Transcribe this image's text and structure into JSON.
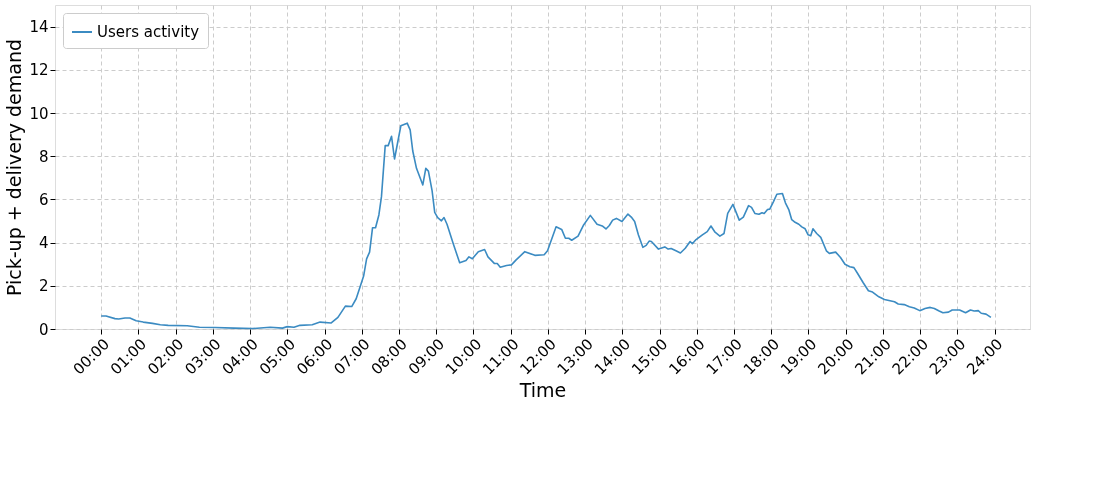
{
  "chart_data": {
    "type": "line",
    "xlabel": "Time",
    "ylabel": "Pick-up + delivery demand",
    "x": [
      0.0,
      0.13,
      0.37,
      0.47,
      0.64,
      0.77,
      0.94,
      1.13,
      1.38,
      1.59,
      1.8,
      2.31,
      2.64,
      3.06,
      3.57,
      4.07,
      4.54,
      4.87,
      5.0,
      5.18,
      5.34,
      5.67,
      5.88,
      6.18,
      6.36,
      6.56,
      6.73,
      6.85,
      6.98,
      7.05,
      7.13,
      7.21,
      7.29,
      7.37,
      7.46,
      7.53,
      7.63,
      7.71,
      7.8,
      7.88,
      8.05,
      8.22,
      8.3,
      8.37,
      8.47,
      8.64,
      8.72,
      8.79,
      8.89,
      8.96,
      9.04,
      9.14,
      9.21,
      9.29,
      9.46,
      9.63,
      9.8,
      9.88,
      9.97,
      10.13,
      10.3,
      10.39,
      10.56,
      10.64,
      10.72,
      10.89,
      11.02,
      11.14,
      11.38,
      11.65,
      11.9,
      11.99,
      12.22,
      12.37,
      12.47,
      12.56,
      12.64,
      12.81,
      12.95,
      13.14,
      13.32,
      13.46,
      13.56,
      13.65,
      13.74,
      13.84,
      13.99,
      14.15,
      14.24,
      14.33,
      14.43,
      14.55,
      14.64,
      14.72,
      14.78,
      14.97,
      15.14,
      15.23,
      15.31,
      15.44,
      15.56,
      15.69,
      15.82,
      15.88,
      15.98,
      16.15,
      16.28,
      16.38,
      16.49,
      16.62,
      16.73,
      16.83,
      16.97,
      17.14,
      17.25,
      17.39,
      17.47,
      17.56,
      17.67,
      17.75,
      17.81,
      17.9,
      17.96,
      18.06,
      18.15,
      18.3,
      18.38,
      18.47,
      18.55,
      18.64,
      18.74,
      18.82,
      18.91,
      18.99,
      19.06,
      19.12,
      19.22,
      19.33,
      19.48,
      19.56,
      19.73,
      19.86,
      19.98,
      20.11,
      20.22,
      20.32,
      20.47,
      20.61,
      20.72,
      20.89,
      21.04,
      21.16,
      21.31,
      21.41,
      21.57,
      21.71,
      21.84,
      21.99,
      22.13,
      22.27,
      22.38,
      22.51,
      22.61,
      22.76,
      22.86,
      23.06,
      23.22,
      23.35,
      23.45,
      23.56,
      23.64,
      23.77,
      23.9
    ],
    "series": [
      {
        "name": "Users activity",
        "color": "#3b8bc2",
        "values": [
          0.6,
          0.6,
          0.48,
          0.46,
          0.51,
          0.51,
          0.38,
          0.32,
          0.26,
          0.2,
          0.17,
          0.15,
          0.08,
          0.07,
          0.04,
          0.02,
          0.08,
          0.04,
          0.11,
          0.08,
          0.17,
          0.2,
          0.32,
          0.28,
          0.54,
          1.06,
          1.04,
          1.4,
          2.08,
          2.45,
          3.25,
          3.56,
          4.69,
          4.69,
          5.28,
          6.14,
          8.49,
          8.49,
          8.92,
          7.87,
          9.41,
          9.53,
          9.22,
          8.24,
          7.44,
          6.67,
          7.44,
          7.31,
          6.39,
          5.4,
          5.16,
          5.01,
          5.16,
          4.85,
          3.93,
          3.07,
          3.17,
          3.34,
          3.25,
          3.58,
          3.68,
          3.34,
          3.04,
          3.03,
          2.86,
          2.94,
          2.97,
          3.19,
          3.58,
          3.41,
          3.44,
          3.62,
          4.73,
          4.61,
          4.2,
          4.2,
          4.11,
          4.3,
          4.79,
          5.26,
          4.85,
          4.77,
          4.63,
          4.79,
          5.04,
          5.12,
          4.98,
          5.32,
          5.18,
          4.98,
          4.36,
          3.78,
          3.87,
          4.07,
          4.05,
          3.7,
          3.8,
          3.7,
          3.73,
          3.62,
          3.52,
          3.74,
          4.05,
          3.95,
          4.14,
          4.36,
          4.51,
          4.77,
          4.48,
          4.3,
          4.42,
          5.35,
          5.77,
          5.04,
          5.18,
          5.71,
          5.63,
          5.35,
          5.31,
          5.38,
          5.35,
          5.53,
          5.55,
          5.9,
          6.24,
          6.27,
          5.84,
          5.53,
          5.06,
          4.94,
          4.85,
          4.73,
          4.64,
          4.36,
          4.32,
          4.64,
          4.42,
          4.24,
          3.62,
          3.5,
          3.56,
          3.31,
          3.0,
          2.88,
          2.84,
          2.57,
          2.14,
          1.77,
          1.71,
          1.49,
          1.37,
          1.32,
          1.26,
          1.16,
          1.13,
          1.03,
          0.97,
          0.85,
          0.95,
          1.0,
          0.95,
          0.83,
          0.75,
          0.78,
          0.88,
          0.88,
          0.75,
          0.88,
          0.83,
          0.85,
          0.73,
          0.69,
          0.54
        ]
      }
    ],
    "xlim": [
      -1.24,
      24.95
    ],
    "xticks": [
      {
        "value": 0,
        "label": "00:00"
      },
      {
        "value": 1,
        "label": "01:00"
      },
      {
        "value": 2,
        "label": "02:00"
      },
      {
        "value": 3,
        "label": "03:00"
      },
      {
        "value": 4,
        "label": "04:00"
      },
      {
        "value": 5,
        "label": "05:00"
      },
      {
        "value": 6,
        "label": "06:00"
      },
      {
        "value": 7,
        "label": "07:00"
      },
      {
        "value": 8,
        "label": "08:00"
      },
      {
        "value": 9,
        "label": "09:00"
      },
      {
        "value": 10,
        "label": "10:00"
      },
      {
        "value": 11,
        "label": "11:00"
      },
      {
        "value": 12,
        "label": "12:00"
      },
      {
        "value": 13,
        "label": "13:00"
      },
      {
        "value": 14,
        "label": "14:00"
      },
      {
        "value": 15,
        "label": "15:00"
      },
      {
        "value": 16,
        "label": "16:00"
      },
      {
        "value": 17,
        "label": "17:00"
      },
      {
        "value": 18,
        "label": "18:00"
      },
      {
        "value": 19,
        "label": "19:00"
      },
      {
        "value": 20,
        "label": "20:00"
      },
      {
        "value": 21,
        "label": "21:00"
      },
      {
        "value": 22,
        "label": "22:00"
      },
      {
        "value": 23,
        "label": "23:00"
      },
      {
        "value": 24,
        "label": "24:00"
      }
    ],
    "ylim": [
      0,
      15
    ],
    "yticks": [
      0,
      2,
      4,
      6,
      8,
      10,
      12,
      14
    ],
    "grid": true,
    "legend": "top left",
    "marker": "none",
    "line_style": "solid"
  }
}
